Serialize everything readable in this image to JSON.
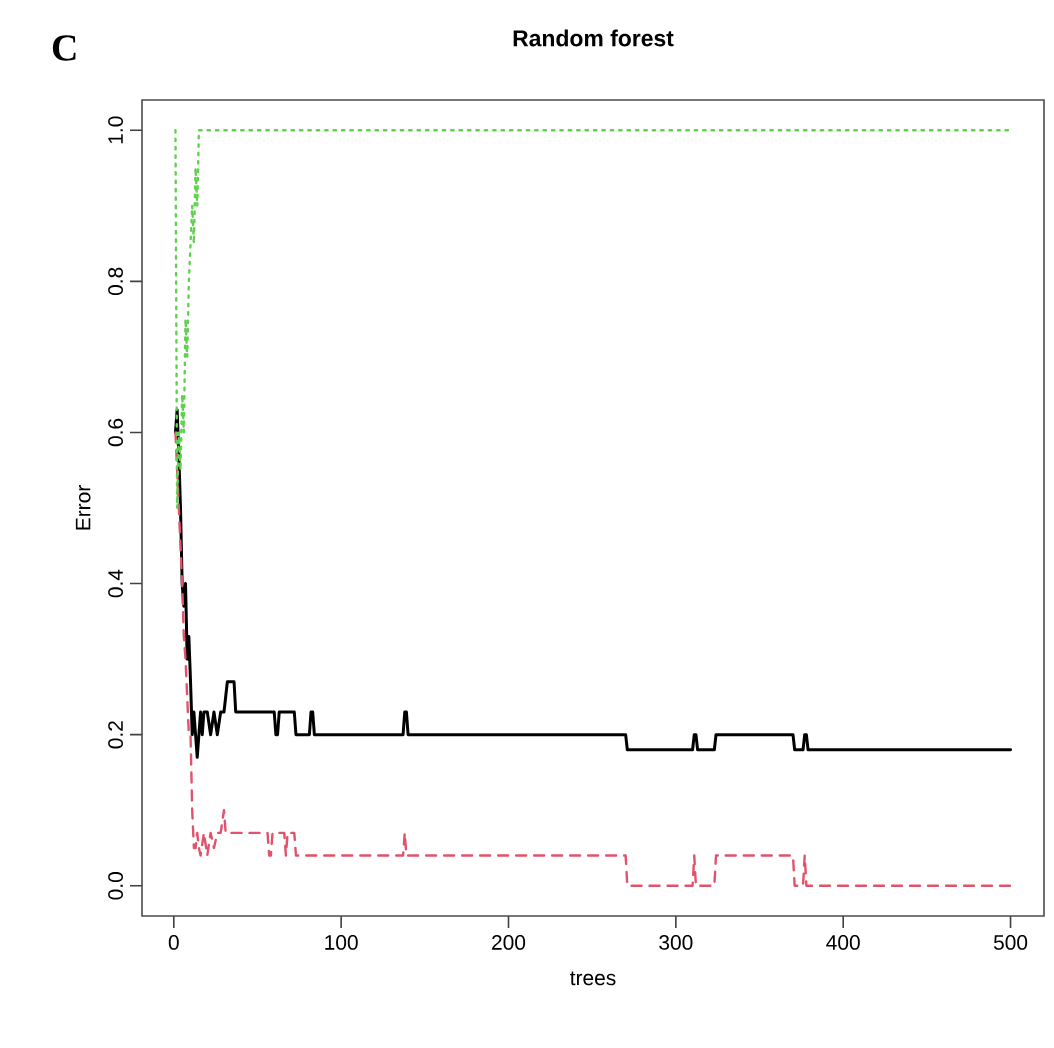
{
  "chart_data": {
    "type": "line",
    "title": "Random forest",
    "xlabel": "trees",
    "ylabel": "Error",
    "annotations": [
      "C"
    ],
    "xlim": [
      -19,
      520
    ],
    "ylim": [
      -0.04,
      1.04
    ],
    "xticks": [
      0,
      100,
      200,
      300,
      400,
      500
    ],
    "yticks": [
      {
        "value": 0,
        "label": "0.0"
      },
      {
        "value": 0.2,
        "label": "0.2"
      },
      {
        "value": 0.4,
        "label": "0.4"
      },
      {
        "value": 0.6,
        "label": "0.6"
      },
      {
        "value": 0.8,
        "label": "0.8"
      },
      {
        "value": 1,
        "label": "1.0"
      }
    ],
    "marker": "none",
    "series": [
      {
        "color": "#000000",
        "line_style": "solid",
        "x": [
          1,
          2,
          3,
          4,
          5,
          6,
          7,
          8,
          9,
          10,
          11,
          12,
          13,
          14,
          15,
          16,
          17,
          18,
          19,
          20,
          22,
          24,
          26,
          28,
          30,
          32,
          34,
          36,
          37,
          58,
          60,
          61,
          62,
          63,
          64,
          72,
          73,
          81,
          82,
          83,
          84,
          137,
          138,
          139,
          140,
          270,
          271,
          310,
          311,
          312,
          313,
          323,
          324,
          370,
          371,
          376,
          377,
          378,
          379,
          500
        ],
        "values": [
          0.6,
          0.63,
          0.57,
          0.5,
          0.4,
          0.37,
          0.4,
          0.3,
          0.33,
          0.27,
          0.2,
          0.23,
          0.2,
          0.17,
          0.2,
          0.23,
          0.2,
          0.23,
          0.23,
          0.23,
          0.2,
          0.23,
          0.2,
          0.23,
          0.23,
          0.27,
          0.27,
          0.27,
          0.23,
          0.23,
          0.23,
          0.2,
          0.2,
          0.23,
          0.23,
          0.23,
          0.2,
          0.2,
          0.23,
          0.23,
          0.2,
          0.2,
          0.23,
          0.23,
          0.2,
          0.2,
          0.18,
          0.18,
          0.2,
          0.2,
          0.18,
          0.18,
          0.2,
          0.2,
          0.18,
          0.18,
          0.2,
          0.2,
          0.18,
          0.18
        ]
      },
      {
        "color": "#df536b",
        "line_style": "dashed",
        "x": [
          1,
          2,
          3,
          4,
          5,
          6,
          7,
          8,
          9,
          10,
          11,
          12,
          13,
          14,
          15,
          16,
          18,
          20,
          22,
          24,
          26,
          28,
          30,
          31,
          32,
          34,
          36,
          38,
          56,
          57,
          58,
          59,
          60,
          66,
          67,
          68,
          69,
          72,
          73,
          137,
          138,
          139,
          270,
          271,
          310,
          311,
          312,
          323,
          324,
          370,
          371,
          376,
          377,
          378,
          500
        ],
        "values": [
          0.6,
          0.55,
          0.5,
          0.45,
          0.4,
          0.33,
          0.3,
          0.25,
          0.2,
          0.2,
          0.1,
          0.05,
          0.05,
          0.07,
          0.05,
          0.04,
          0.07,
          0.04,
          0.07,
          0.05,
          0.07,
          0.07,
          0.1,
          0.07,
          0.07,
          0.07,
          0.07,
          0.07,
          0.07,
          0.04,
          0.04,
          0.07,
          0.07,
          0.07,
          0.04,
          0.07,
          0.07,
          0.07,
          0.04,
          0.04,
          0.07,
          0.04,
          0.04,
          0,
          0,
          0.04,
          0,
          0,
          0.04,
          0.04,
          0,
          0,
          0.04,
          0,
          0
        ]
      },
      {
        "color": "#61d04f",
        "line_style": "dotted",
        "x": [
          1,
          2,
          3,
          4,
          5,
          6,
          7,
          8,
          9,
          10,
          11,
          12,
          13,
          14,
          15,
          16,
          17,
          500
        ],
        "values": [
          1,
          0.5,
          0.6,
          0.55,
          0.65,
          0.6,
          0.75,
          0.7,
          0.8,
          0.85,
          0.9,
          0.85,
          0.95,
          0.9,
          1,
          1,
          1,
          1
        ]
      }
    ]
  }
}
